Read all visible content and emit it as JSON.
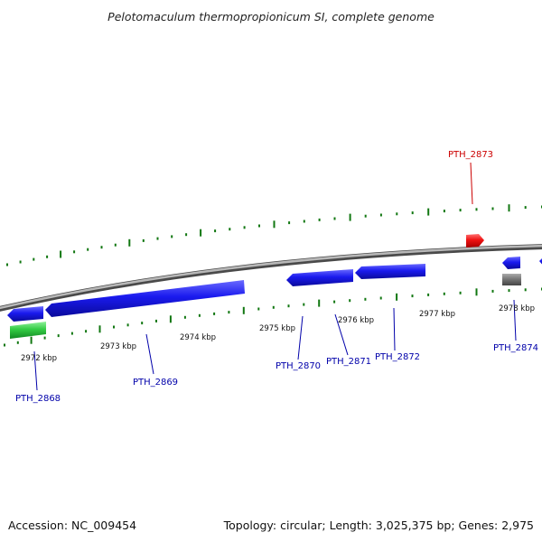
{
  "title": "Pelotomaculum thermopropionicum SI, complete genome",
  "footer": {
    "accession": "Accession: NC_009454",
    "summary": "Topology: circular; Length: 3,025,375 bp; Genes: 2,975"
  },
  "colors": {
    "forward_gene": "#1a1aee",
    "reverse_gene": "#1a1aee",
    "highlight_gene": "#ee1111",
    "rna_gene": "#22bb33",
    "pseudo_gene": "#777777",
    "backbone": "#8a8a8a",
    "tick": "#117711",
    "label_blue": "#0000aa",
    "label_red": "#cc0000"
  },
  "scale_labels": [
    "2972 kbp",
    "2973 kbp",
    "2974 kbp",
    "2975 kbp",
    "2976 kbp",
    "2977 kbp",
    "2978 kbp"
  ],
  "gene_labels": [
    {
      "text": "PTH_2868",
      "color": "label_blue"
    },
    {
      "text": "PTH_2869",
      "color": "label_blue"
    },
    {
      "text": "PTH_2870",
      "color": "label_blue"
    },
    {
      "text": "PTH_2871",
      "color": "label_blue"
    },
    {
      "text": "PTH_2872",
      "color": "label_blue"
    },
    {
      "text": "PTH_2873",
      "color": "label_red"
    },
    {
      "text": "PTH_2874",
      "color": "label_blue"
    }
  ]
}
